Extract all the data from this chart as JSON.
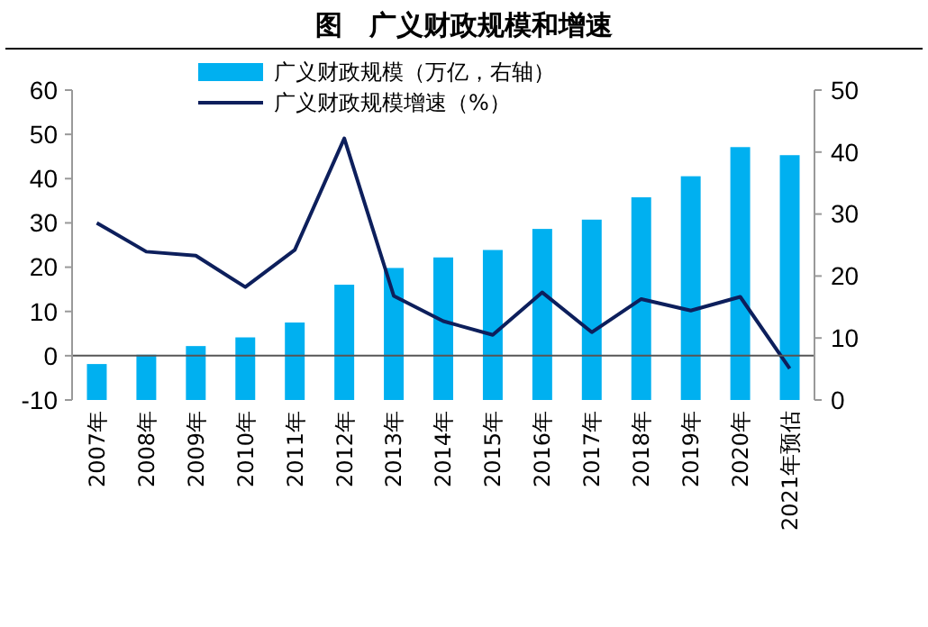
{
  "chart_data": {
    "type": "bar",
    "title": "图　广义财政规模和增速",
    "categories": [
      "2007年",
      "2008年",
      "2009年",
      "2010年",
      "2011年",
      "2012年",
      "2013年",
      "2014年",
      "2015年",
      "2016年",
      "2017年",
      "2018年",
      "2019年",
      "2020年",
      "2021年预估"
    ],
    "series": [
      {
        "name": "广义财政规模（万亿，右轴）",
        "axis": "y2",
        "color": "#00b0f0",
        "values": [
          5.8,
          7.3,
          8.7,
          10.1,
          12.5,
          18.6,
          21.3,
          23.0,
          24.2,
          27.6,
          29.1,
          32.7,
          36.1,
          40.8,
          39.5
        ]
      },
      {
        "name": "广义财政规模增速（%）",
        "type": "line",
        "color": "#0d1f5c",
        "values": [
          30.0,
          23.5,
          22.6,
          15.5,
          23.9,
          49.1,
          13.5,
          7.8,
          4.7,
          14.3,
          5.3,
          12.8,
          10.2,
          13.3,
          -2.9
        ]
      }
    ],
    "ylim": [
      -10,
      60
    ],
    "yticks": [
      -10,
      0,
      10,
      20,
      30,
      40,
      50,
      60
    ],
    "y2lim": [
      0,
      50
    ],
    "y2ticks": [
      0,
      10,
      20,
      30,
      40,
      50
    ],
    "legend": "top",
    "grid": false
  }
}
